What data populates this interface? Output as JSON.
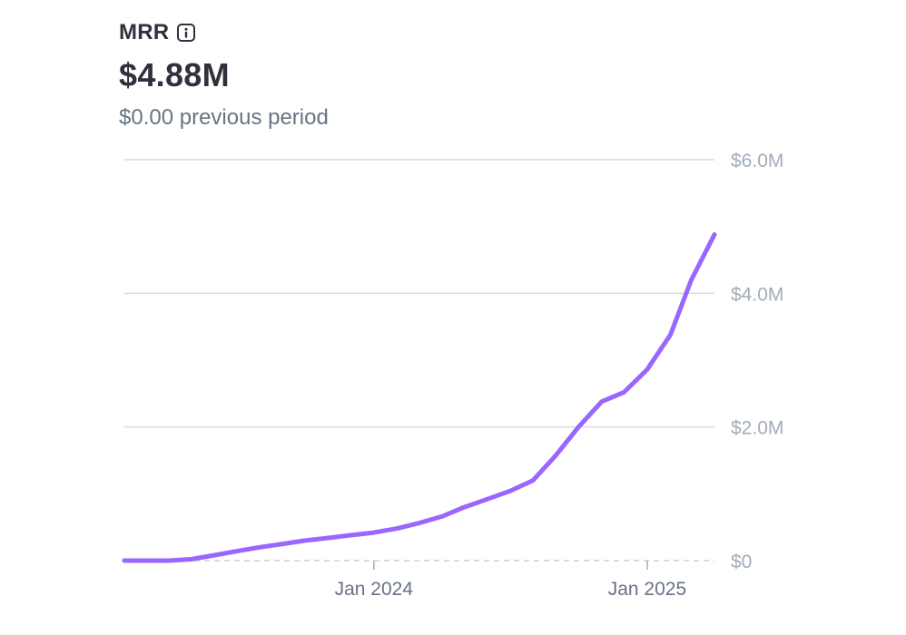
{
  "header": {
    "title": "MRR",
    "value": "$4.88M",
    "comparison": "$0.00 previous period"
  },
  "icons": {
    "info": "info-icon"
  },
  "colors": {
    "line": "#9966ff",
    "grid": "#d5dbe3",
    "axis_text": "#a3acb9",
    "tick_text": "#687385",
    "text": "#30313d"
  },
  "chart_data": {
    "type": "line",
    "title": "MRR",
    "xlabel": "",
    "ylabel": "",
    "x": [
      "2023-02-01",
      "2023-03-01",
      "2023-04-01",
      "2023-05-01",
      "2023-06-01",
      "2023-07-01",
      "2023-08-01",
      "2023-09-01",
      "2023-10-01",
      "2023-11-01",
      "2023-12-01",
      "2024-01-01",
      "2024-02-01",
      "2024-03-01",
      "2024-04-01",
      "2024-05-01",
      "2024-06-01",
      "2024-07-01",
      "2024-08-01",
      "2024-09-01",
      "2024-10-01",
      "2024-11-01",
      "2024-12-01",
      "2025-01-01",
      "2025-02-01",
      "2025-03-01",
      "2025-04-01"
    ],
    "series": [
      {
        "values": [
          0,
          0,
          0,
          0.02,
          0.08,
          0.14,
          0.2,
          0.25,
          0.3,
          0.34,
          0.38,
          0.42,
          0.48,
          0.56,
          0.66,
          0.8,
          0.92,
          1.04,
          1.2,
          1.58,
          2.0,
          2.38,
          2.52,
          2.86,
          3.38,
          4.2,
          4.88
        ]
      }
    ],
    "ylim": [
      0,
      6
    ],
    "yticks": [
      0,
      2,
      4,
      6
    ],
    "ytick_labels": [
      "$0",
      "$2.0M",
      "$4.0M",
      "$6.0M"
    ],
    "xticks": [
      "2024-01-01",
      "2025-01-01"
    ],
    "xtick_labels": [
      "Jan 2024",
      "Jan 2025"
    ],
    "y_axis_side": "right",
    "grid": true,
    "legend": "none"
  }
}
